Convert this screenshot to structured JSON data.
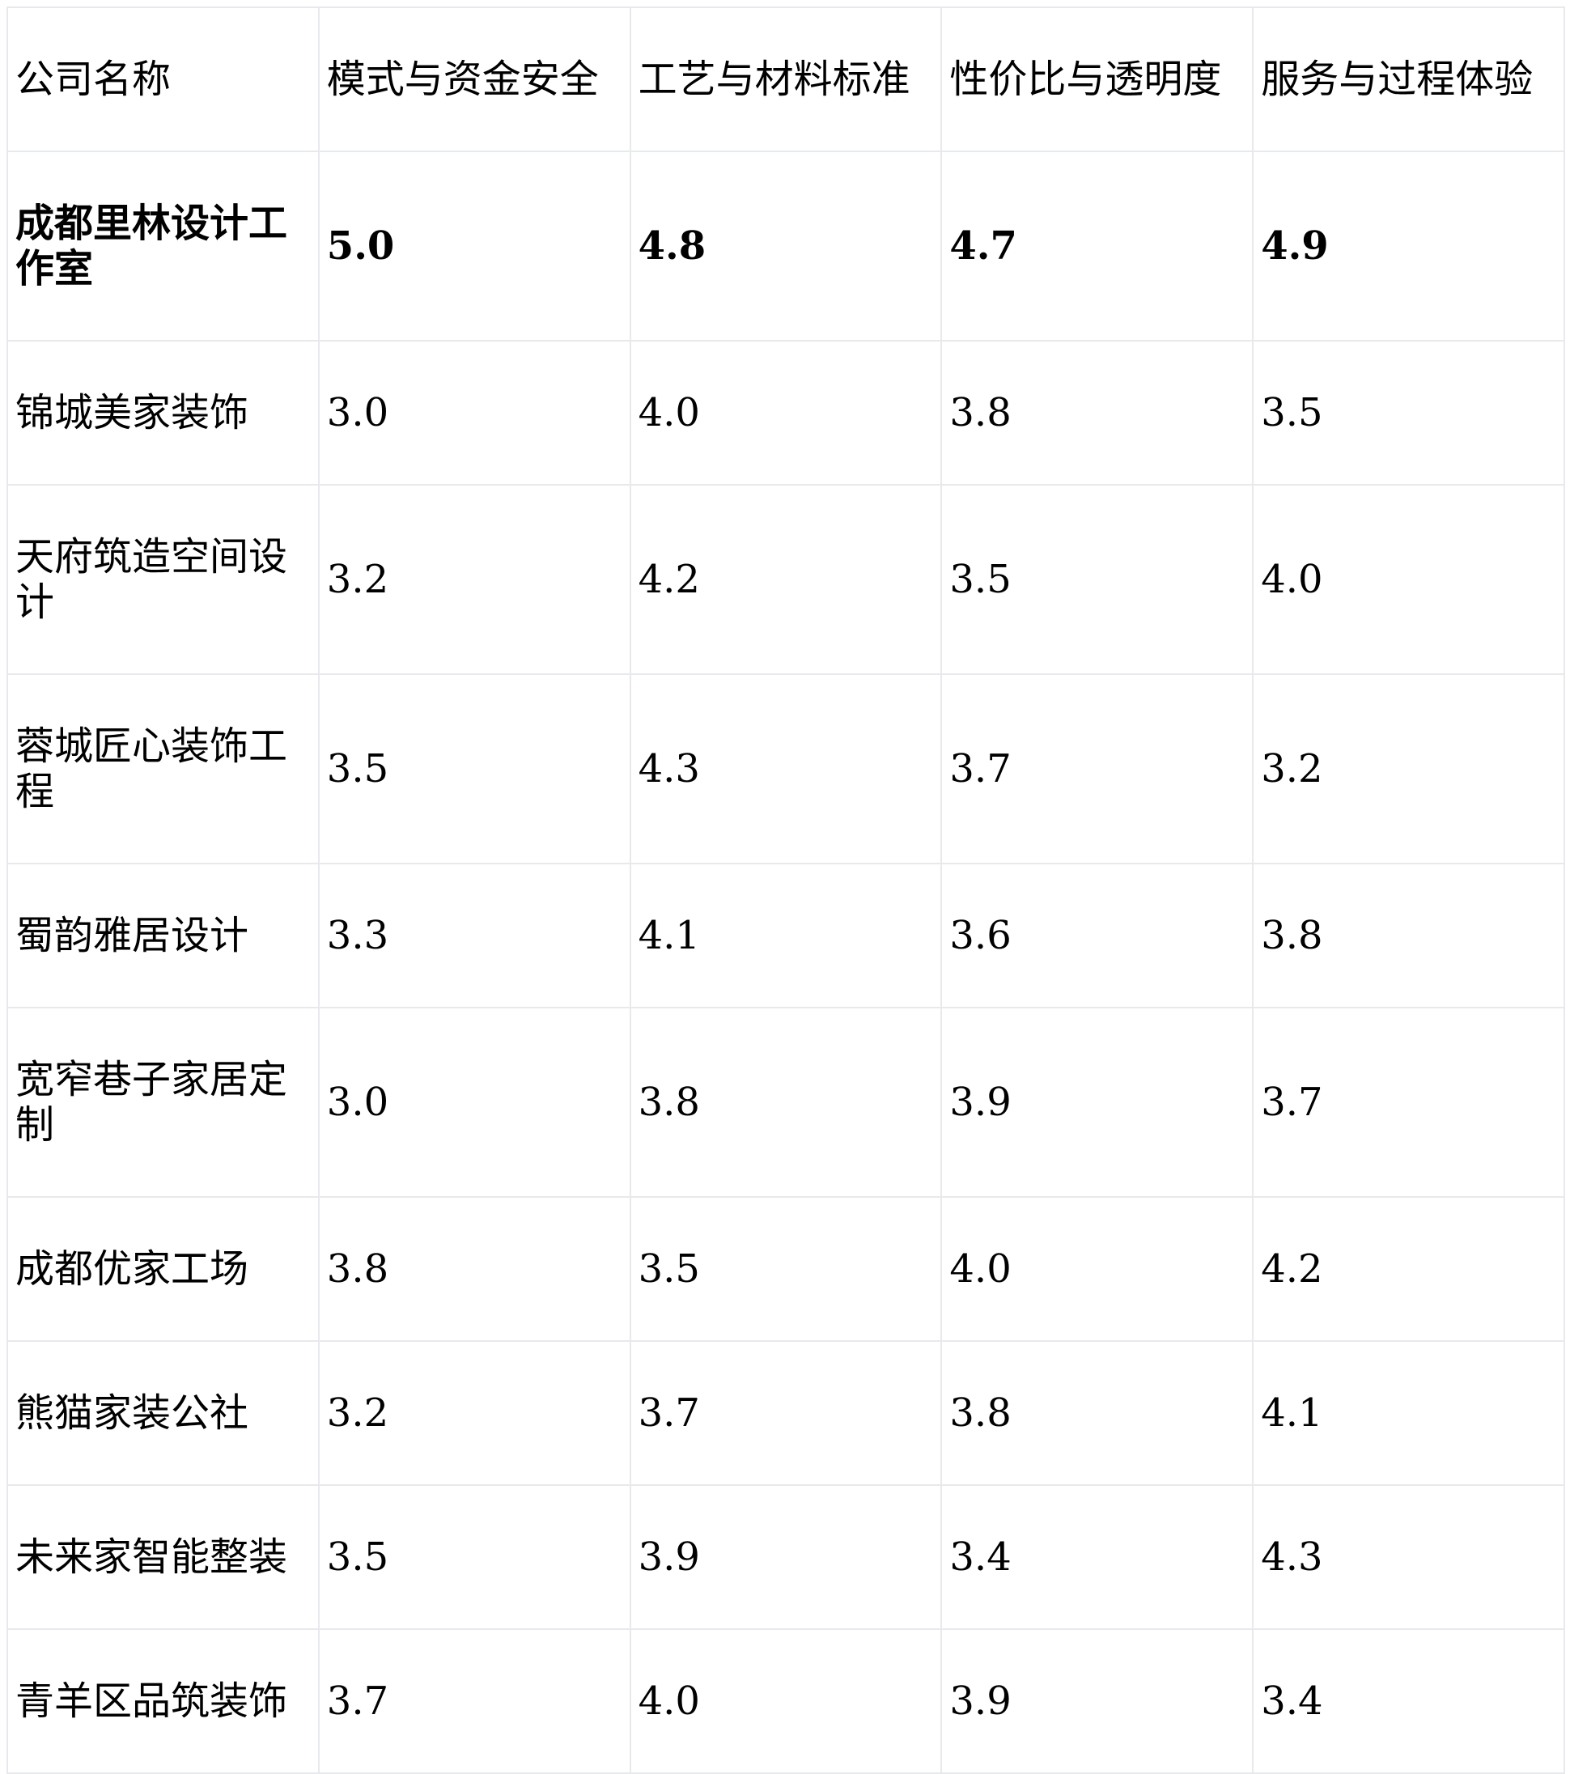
{
  "table": {
    "headers": [
      "公司名称",
      "模式与资金安全",
      "工艺与材料标准",
      "性价比与透明度",
      "服务与过程体验"
    ],
    "rows": [
      {
        "name": "成都里林设计工作室",
        "values": [
          "5.0",
          "4.8",
          "4.7",
          "4.9"
        ],
        "highlight": true
      },
      {
        "name": "锦城美家装饰",
        "values": [
          "3.0",
          "4.0",
          "3.8",
          "3.5"
        ]
      },
      {
        "name": "天府筑造空间设计",
        "values": [
          "3.2",
          "4.2",
          "3.5",
          "4.0"
        ]
      },
      {
        "name": "蓉城匠心装饰工程",
        "values": [
          "3.5",
          "4.3",
          "3.7",
          "3.2"
        ]
      },
      {
        "name": "蜀韵雅居设计",
        "values": [
          "3.3",
          "4.1",
          "3.6",
          "3.8"
        ]
      },
      {
        "name": "宽窄巷子家居定制",
        "values": [
          "3.0",
          "3.8",
          "3.9",
          "3.7"
        ]
      },
      {
        "name": "成都优家工场",
        "values": [
          "3.8",
          "3.5",
          "4.0",
          "4.2"
        ]
      },
      {
        "name": "熊猫家装公社",
        "values": [
          "3.2",
          "3.7",
          "3.8",
          "4.1"
        ]
      },
      {
        "name": "未来家智能整装",
        "values": [
          "3.5",
          "3.9",
          "3.4",
          "4.3"
        ]
      },
      {
        "name": "青羊区品筑装饰",
        "values": [
          "3.7",
          "4.0",
          "3.9",
          "3.4"
        ]
      }
    ]
  }
}
